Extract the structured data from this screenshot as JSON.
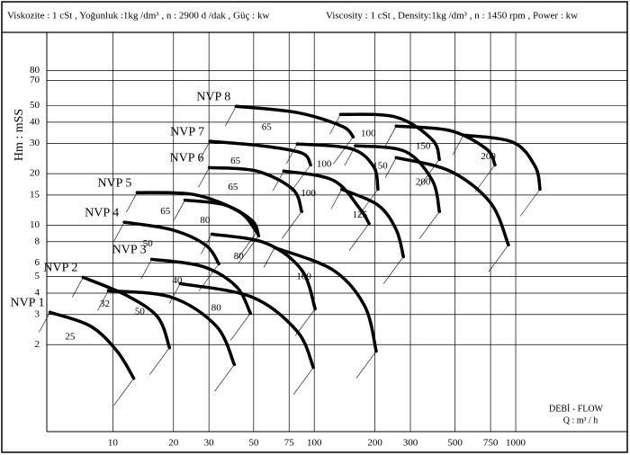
{
  "chart_data": {
    "type": "line",
    "header_left": "Viskozite : 1 cSt , Yoğunluk :1kg /dm³ , n : 2900 d /dak , Güç : kw",
    "header_right": "Viscosity : 1 cSt , Density:1kg /dm³ , n : 1450 rpm , Power : kw",
    "ylabel": "Hm : mSS",
    "xlabel": "DEBİ - FLOW",
    "xunit": "Q : m³ / h",
    "log_x": true,
    "log_y": true,
    "grid": true,
    "color": "#000000",
    "xlim": [
      4.7,
      3580
    ],
    "ylim": [
      0.62,
      134
    ],
    "xticks": [
      10,
      20,
      30,
      50,
      75,
      100,
      200,
      300,
      500,
      750,
      1000
    ],
    "yticks": [
      2,
      3,
      4,
      5,
      6,
      8,
      10,
      15,
      20,
      30,
      40,
      50,
      70,
      80
    ],
    "groups": [
      {
        "name": "NVP 1",
        "curves": [
          {
            "name": "25",
            "x": [
              4.87,
              7.73,
              10.5,
              12.7
            ],
            "y": [
              3.09,
              2.57,
              1.83,
              1.27
            ]
          }
        ]
      },
      {
        "name": "NVP 2",
        "curves": [
          {
            "name": "32",
            "x": [
              7.12,
              11.7,
              16.7,
              19.1
            ],
            "y": [
              4.95,
              3.88,
              2.9,
              1.92
            ]
          },
          {
            "name": "50",
            "x": [
              9.5,
              19.5,
              32.6,
              40.1
            ],
            "y": [
              4.13,
              3.79,
              2.57,
              1.53
            ]
          },
          {
            "name": "80",
            "x": [
              21.6,
              49.2,
              82.3,
              99
            ],
            "y": [
              4.55,
              3.79,
              2.39,
              1.47
            ]
          }
        ]
      },
      {
        "name": "NVP 3",
        "curves": [
          {
            "name": "40",
            "x": [
              15.6,
              27.9,
              40.9,
              48.2
            ],
            "y": [
              6.31,
              5.73,
              4.39,
              3.05
            ]
          },
          {
            "name": "80",
            "x": [
              31.0,
              57.4,
              86.6,
              101
            ],
            "y": [
              8.86,
              7.85,
              5.46,
              3.24
            ]
          },
          {
            "name": "100",
            "x": [
              63.6,
              124,
              178,
              203
            ],
            "y": [
              7.39,
              5.46,
              3.36,
              1.83
            ]
          }
        ]
      },
      {
        "name": "NVP 4",
        "curves": [
          {
            "name": "50",
            "x": [
              11.4,
              19.5,
              28.8,
              33.6
            ],
            "y": [
              10.4,
              9.41,
              7.66,
              5.94
            ]
          },
          {
            "name": "80",
            "x": [
              22.8,
              36.1,
              49.2,
              52.9
            ],
            "y": [
              14.0,
              13.1,
              10.6,
              8.65
            ]
          },
          {
            "name": "125",
            "x": [
              137,
              207,
              255,
              277
            ],
            "y": [
              16.2,
              13.1,
              9.41,
              6.54
            ]
          }
        ]
      },
      {
        "name": "NVP 5",
        "curves": [
          {
            "name": "65",
            "x": [
              13.2,
              25.2,
              42.2,
              51.8
            ],
            "y": [
              15.5,
              15.1,
              12.0,
              9.08
            ]
          },
          {
            "name": "100",
            "x": [
              70.5,
              124,
              169,
              187
            ],
            "y": [
              20.7,
              18.3,
              12.4,
              10.2
            ]
          },
          {
            "name": "200",
            "x": [
              255,
              472,
              750,
              920
            ],
            "y": [
              24.8,
              20.7,
              13.5,
              7.66
            ]
          }
        ]
      },
      {
        "name": "NVP 6",
        "curves": [
          {
            "name": "65",
            "x": [
              30.1,
              51.8,
              78.2,
              86.6
            ],
            "y": [
              21.7,
              20.7,
              16.2,
              12.0
            ]
          },
          {
            "name": "150",
            "x": [
              160,
              282,
              385,
              418
            ],
            "y": [
              29.1,
              27.0,
              18.3,
              12.0
            ]
          }
        ]
      },
      {
        "name": "NVP 7",
        "curves": [
          {
            "name": "65",
            "x": [
              30.3,
              54.5,
              86.6,
              95.9
            ],
            "y": [
              30.9,
              29.1,
              26.4,
              22.5
            ]
          },
          {
            "name": "100",
            "x": [
              82.3,
              152,
              197,
              207
            ],
            "y": [
              29.8,
              28.0,
              22.0,
              16.2
            ]
          }
        ]
      },
      {
        "name": "NVP 8",
        "curves": [
          {
            "name": "65",
            "x": [
              40.9,
              82.3,
              137,
              156
            ],
            "y": [
              49.5,
              45.5,
              37.9,
              32.8
            ]
          },
          {
            "name": "100",
            "x": [
              135,
              255,
              385,
              418
            ],
            "y": [
              44.4,
              42.8,
              31.6,
              24.2
            ]
          },
          {
            "name": "150",
            "x": [
              255,
              472,
              713,
              789
            ],
            "y": [
              37.9,
              35.7,
              28.0,
              22.5
            ]
          },
          {
            "name": "200",
            "x": [
              551,
              970,
              1250,
              1320
            ],
            "y": [
              33.6,
              30.5,
              22.0,
              16.2
            ]
          }
        ]
      }
    ]
  }
}
